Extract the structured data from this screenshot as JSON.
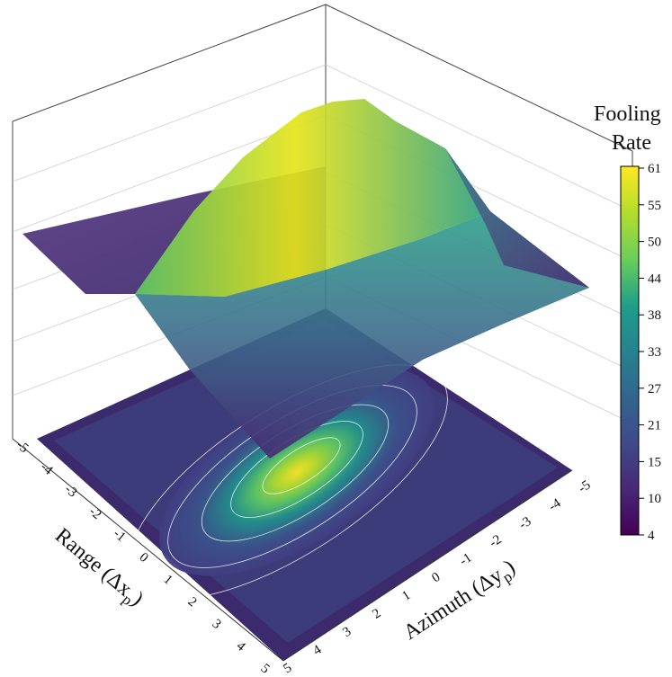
{
  "chart_data": {
    "type": "surface3d",
    "x_axis": {
      "label_main": "Range (Δx",
      "label_sub": "p",
      "label_close": ")",
      "ticks": [
        "-5",
        "-4",
        "-3",
        "-2",
        "-1",
        "0",
        "1",
        "2",
        "3",
        "4",
        "5"
      ]
    },
    "y_axis": {
      "label_main": "Azimuth (Δy",
      "label_sub": "p",
      "label_close": ")",
      "ticks": [
        "-5",
        "-4",
        "-3",
        "-2",
        "-1",
        "0",
        "1",
        "2",
        "3",
        "4",
        "5"
      ]
    },
    "colorbar": {
      "title_line1": "Fooling",
      "title_line2": "Rate",
      "ticks": [
        "4",
        "10",
        "15",
        "21",
        "27",
        "33",
        "38",
        "44",
        "50",
        "55",
        "61"
      ],
      "range": [
        4,
        61
      ]
    },
    "x": [
      -5,
      -4,
      -3,
      -2,
      -1,
      0,
      1,
      2,
      3,
      4,
      5
    ],
    "y": [
      -5,
      -4,
      -3,
      -2,
      -1,
      0,
      1,
      2,
      3,
      4,
      5
    ],
    "z_description_peak": 61,
    "z_min": 4,
    "colormap": [
      "#440154",
      "#482777",
      "#3f4a8a",
      "#31678e",
      "#26838f",
      "#1f9d8a",
      "#6cce5a",
      "#b6de2b",
      "#fee825"
    ],
    "grid": true,
    "contour_projection": true
  }
}
